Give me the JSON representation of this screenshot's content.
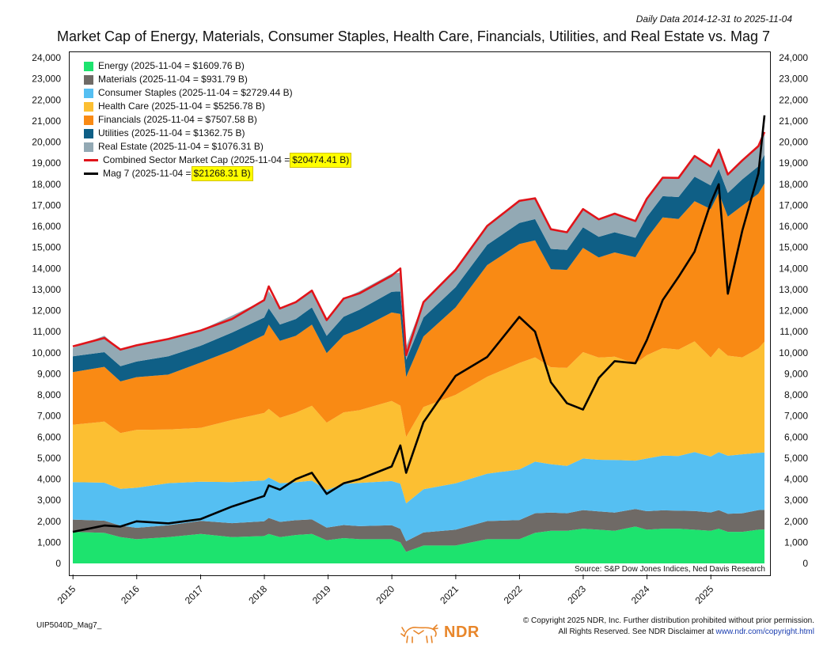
{
  "header": {
    "daily_range": "Daily Data 2014-12-31 to 2025-11-04",
    "title": "Market Cap of Energy, Materials, Consumer Staples, Health Care, Financials, Utilities, and Real Estate vs. Mag 7"
  },
  "legend": [
    {
      "kind": "area",
      "label": "Energy (2025-11-04 = $1609.76 B)",
      "highlight": "",
      "color": "#1de36e"
    },
    {
      "kind": "area",
      "label": "Materials (2025-11-04 = $931.79 B)",
      "highlight": "",
      "color": "#6f6a66"
    },
    {
      "kind": "area",
      "label": "Consumer Staples (2025-11-04 = $2729.44 B)",
      "highlight": "",
      "color": "#55bff2"
    },
    {
      "kind": "area",
      "label": "Health Care (2025-11-04 = $5256.78 B)",
      "highlight": "",
      "color": "#fcbf32"
    },
    {
      "kind": "area",
      "label": "Financials (2025-11-04 = $7507.58 B)",
      "highlight": "",
      "color": "#f98a14"
    },
    {
      "kind": "area",
      "label": "Utilities (2025-11-04 = $1362.75 B)",
      "highlight": "",
      "color": "#0f5f86"
    },
    {
      "kind": "area",
      "label": "Real Estate (2025-11-04 = $1076.31 B)",
      "highlight": "",
      "color": "#93a9b4"
    },
    {
      "kind": "line",
      "label": "Combined Sector Market Cap (2025-11-04 = ",
      "highlight": "$20474.41 B)",
      "color": "#e0141a"
    },
    {
      "kind": "line",
      "label": "Mag 7 (2025-11-04 = ",
      "highlight": "$21268.31 B)",
      "color": "#000000"
    }
  ],
  "source_note": "Source: S&P Dow Jones Indices, Ned Davis Research",
  "footer": {
    "id": "UIP5040D_Mag7_",
    "copyright_line1": "© Copyright 2025 NDR, Inc. Further distribution prohibited without prior permission.",
    "copyright_line2_prefix": "All Rights Reserved. See NDR Disclaimer at ",
    "copyright_link": "www.ndr.com/copyright.html",
    "logo_text": "NDR"
  },
  "chart_data": {
    "type": "area",
    "stacked": true,
    "x_range": [
      "2014-12-31",
      "2025-11-04"
    ],
    "x_ticks": [
      "2015",
      "2016",
      "2017",
      "2018",
      "2019",
      "2020",
      "2021",
      "2022",
      "2023",
      "2024",
      "2025"
    ],
    "y_ticks": [
      "0",
      "1,000",
      "2,000",
      "3,000",
      "4,000",
      "5,000",
      "6,000",
      "7,000",
      "8,000",
      "9,000",
      "10,000",
      "11,000",
      "12,000",
      "13,000",
      "14,000",
      "15,000",
      "16,000",
      "17,000",
      "18,000",
      "19,000",
      "20,000",
      "21,000",
      "22,000",
      "23,000",
      "24,000"
    ],
    "ylim": [
      0,
      24000
    ],
    "dates": [
      "2014-12-31",
      "2015-06-30",
      "2015-09-30",
      "2015-12-31",
      "2016-06-30",
      "2016-12-31",
      "2017-06-30",
      "2017-12-31",
      "2018-01-26",
      "2018-03-31",
      "2018-06-30",
      "2018-09-30",
      "2018-12-24",
      "2019-03-31",
      "2019-06-30",
      "2019-12-31",
      "2020-02-19",
      "2020-03-23",
      "2020-06-30",
      "2020-12-31",
      "2021-06-30",
      "2021-12-31",
      "2022-03-31",
      "2022-06-30",
      "2022-09-30",
      "2022-12-31",
      "2023-03-31",
      "2023-06-30",
      "2023-10-27",
      "2023-12-31",
      "2024-03-31",
      "2024-06-30",
      "2024-09-30",
      "2024-12-31",
      "2025-02-15",
      "2025-04-08",
      "2025-06-30",
      "2025-09-30",
      "2025-11-04"
    ],
    "series": [
      {
        "name": "Energy",
        "color": "#1de36e",
        "values": [
          1500,
          1450,
          1250,
          1150,
          1250,
          1400,
          1250,
          1300,
          1400,
          1250,
          1350,
          1400,
          1100,
          1200,
          1150,
          1150,
          1000,
          550,
          850,
          850,
          1150,
          1150,
          1450,
          1550,
          1550,
          1650,
          1600,
          1550,
          1750,
          1600,
          1650,
          1650,
          1600,
          1550,
          1650,
          1500,
          1500,
          1600,
          1609.76
        ]
      },
      {
        "name": "Materials",
        "color": "#6f6a66",
        "values": [
          580,
          580,
          540,
          540,
          560,
          620,
          660,
          700,
          760,
          720,
          700,
          690,
          600,
          620,
          620,
          660,
          640,
          500,
          620,
          750,
          860,
          910,
          930,
          860,
          830,
          880,
          870,
          860,
          830,
          880,
          870,
          850,
          890,
          870,
          880,
          860,
          880,
          930,
          931.79
        ]
      },
      {
        "name": "Consumer Staples",
        "color": "#55bff2",
        "values": [
          1780,
          1800,
          1750,
          1900,
          2000,
          1860,
          1950,
          1940,
          1920,
          1840,
          1800,
          1840,
          1780,
          1950,
          2050,
          2100,
          2150,
          1800,
          2050,
          2200,
          2250,
          2400,
          2450,
          2300,
          2250,
          2450,
          2450,
          2500,
          2300,
          2500,
          2600,
          2600,
          2800,
          2650,
          2750,
          2750,
          2800,
          2720,
          2729.44
        ]
      },
      {
        "name": "Health Care",
        "color": "#fcbf32",
        "values": [
          2720,
          2900,
          2650,
          2750,
          2550,
          2550,
          2950,
          3200,
          3250,
          3100,
          3300,
          3550,
          3200,
          3400,
          3450,
          3800,
          3700,
          3150,
          3900,
          4200,
          4600,
          5050,
          4950,
          4600,
          4650,
          5050,
          4850,
          4900,
          4600,
          4900,
          5100,
          5050,
          5250,
          4700,
          4950,
          4750,
          4600,
          4950,
          5256.78
        ]
      },
      {
        "name": "Financials",
        "color": "#f98a14",
        "values": [
          2500,
          2600,
          2450,
          2500,
          2600,
          3100,
          3300,
          3700,
          4000,
          3650,
          3650,
          3850,
          3300,
          3650,
          3850,
          4200,
          4350,
          2850,
          3350,
          4150,
          5300,
          5650,
          5550,
          4650,
          4650,
          4950,
          4750,
          4950,
          5050,
          5550,
          6200,
          6200,
          6650,
          7050,
          7350,
          6600,
          7200,
          7350,
          7507.58
        ]
      },
      {
        "name": "Utilities",
        "color": "#0f5f86",
        "values": [
          750,
          700,
          720,
          740,
          870,
          800,
          850,
          830,
          780,
          780,
          800,
          820,
          820,
          890,
          920,
          980,
          1070,
          820,
          900,
          960,
          960,
          1000,
          1010,
          970,
          950,
          970,
          980,
          960,
          930,
          1010,
          1010,
          1040,
          1170,
          1120,
          1140,
          1120,
          1250,
          1300,
          1362.75
        ]
      },
      {
        "name": "Real Estate",
        "color": "#93a9b4",
        "values": [
          400,
          780,
          780,
          760,
          810,
          740,
          800,
          820,
          810,
          760,
          800,
          800,
          750,
          860,
          880,
          860,
          890,
          630,
          730,
          790,
          920,
          1070,
          1040,
          930,
          840,
          870,
          850,
          880,
          790,
          870,
          880,
          860,
          980,
          900,
          920,
          880,
          900,
          960,
          1076.31
        ]
      }
    ],
    "lines": [
      {
        "name": "Combined Sector Market Cap",
        "color": "#e0141a",
        "values": [
          10300,
          10700,
          10150,
          10350,
          10650,
          11050,
          11600,
          12500,
          13150,
          12100,
          12400,
          12950,
          11550,
          12570,
          12820,
          13660,
          14000,
          9880,
          12400,
          13940,
          16020,
          17210,
          17330,
          15860,
          15720,
          16820,
          16330,
          16600,
          16250,
          17310,
          18310,
          18300,
          19340,
          18840,
          19640,
          18460,
          19130,
          19810,
          20474.41
        ]
      },
      {
        "name": "Mag 7",
        "color": "#000000",
        "values": [
          1500,
          1800,
          1750,
          2000,
          1900,
          2100,
          2700,
          3200,
          3700,
          3500,
          4000,
          4300,
          3300,
          3800,
          4000,
          4600,
          5600,
          4300,
          6700,
          8900,
          9800,
          11700,
          11000,
          8600,
          7600,
          7300,
          8800,
          9600,
          9500,
          10600,
          12500,
          13600,
          14800,
          17100,
          18000,
          12800,
          15800,
          18500,
          21268.31
        ]
      }
    ]
  }
}
